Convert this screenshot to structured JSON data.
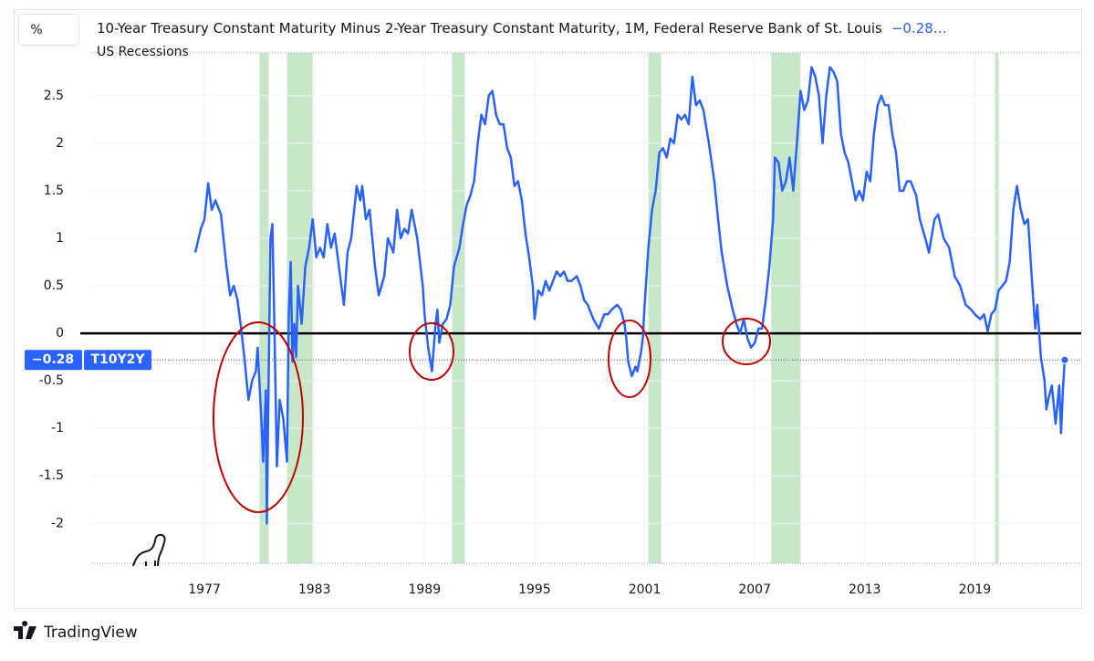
{
  "unit_button": "%",
  "footer": {
    "brand": "TradingView"
  },
  "chart_data": {
    "type": "line",
    "title": "10-Year Treasury Constant Maturity Minus 2-Year Treasury Constant Maturity, 1M, Federal Reserve Bank of St. Louis",
    "title_value": "−0.28…",
    "recessions": {
      "name": "US Recessions",
      "color": "#c8e6c9",
      "bands": [
        [
          1980.0,
          1980.5
        ],
        [
          1981.5,
          1982.9
        ],
        [
          1990.5,
          1991.2
        ],
        [
          2001.2,
          2001.9
        ],
        [
          2007.9,
          2009.5
        ],
        [
          2020.1,
          2020.3
        ]
      ]
    },
    "zero_line": true,
    "grid": true,
    "xlim": [
      1966.6,
      2024.8
    ],
    "xticks": [
      1977,
      1983,
      1989,
      1995,
      2001,
      2007,
      2013,
      2019
    ],
    "ylim": [
      -2.42,
      2.95
    ],
    "yticks": [
      -2,
      -1.5,
      -1,
      -0.5,
      0,
      0.5,
      1,
      1.5,
      2,
      2.5
    ],
    "last_value": {
      "value": -0.28,
      "label": "−0.28"
    },
    "series": [
      {
        "name": "T10Y2Y",
        "color": "#2962ff",
        "x": [
          1976.5,
          1976.8,
          1977.0,
          1977.2,
          1977.4,
          1977.6,
          1977.9,
          1978.2,
          1978.4,
          1978.6,
          1978.8,
          1979.0,
          1979.2,
          1979.4,
          1979.6,
          1979.8,
          1979.9,
          1980.1,
          1980.2,
          1980.35,
          1980.4,
          1980.5,
          1980.6,
          1980.7,
          1980.8,
          1980.95,
          1981.1,
          1981.3,
          1981.5,
          1981.6,
          1981.7,
          1981.8,
          1981.9,
          1982.0,
          1982.1,
          1982.3,
          1982.5,
          1982.7,
          1982.9,
          1983.1,
          1983.3,
          1983.5,
          1983.7,
          1983.9,
          1984.1,
          1984.4,
          1984.6,
          1984.8,
          1985.0,
          1985.3,
          1985.5,
          1985.6,
          1985.8,
          1986.0,
          1986.3,
          1986.5,
          1986.8,
          1987.0,
          1987.3,
          1987.5,
          1987.7,
          1987.9,
          1988.1,
          1988.3,
          1988.6,
          1988.9,
          1989.0,
          1989.2,
          1989.4,
          1989.6,
          1989.7,
          1989.8,
          1990.0,
          1990.2,
          1990.4,
          1990.6,
          1990.9,
          1991.1,
          1991.3,
          1991.5,
          1991.7,
          1991.9,
          1992.1,
          1992.3,
          1992.5,
          1992.7,
          1992.9,
          1993.1,
          1993.3,
          1993.5,
          1993.7,
          1993.9,
          1994.1,
          1994.3,
          1994.5,
          1994.7,
          1994.9,
          1995.0,
          1995.2,
          1995.4,
          1995.6,
          1995.8,
          1996.0,
          1996.2,
          1996.4,
          1996.6,
          1996.8,
          1997.0,
          1997.3,
          1997.5,
          1997.7,
          1997.9,
          1998.2,
          1998.5,
          1998.8,
          1999.0,
          1999.2,
          1999.5,
          1999.7,
          1999.9,
          2000.0,
          2000.1,
          2000.3,
          2000.5,
          2000.6,
          2000.8,
          2000.9,
          2001.0,
          2001.2,
          2001.4,
          2001.6,
          2001.8,
          2002.0,
          2002.2,
          2002.4,
          2002.6,
          2002.8,
          2003.0,
          2003.2,
          2003.4,
          2003.6,
          2003.8,
          2004.0,
          2004.2,
          2004.5,
          2004.8,
          2005.0,
          2005.2,
          2005.5,
          2005.8,
          2006.0,
          2006.2,
          2006.4,
          2006.6,
          2006.8,
          2007.0,
          2007.2,
          2007.4,
          2007.6,
          2007.8,
          2008.0,
          2008.1,
          2008.3,
          2008.5,
          2008.7,
          2008.9,
          2009.1,
          2009.3,
          2009.5,
          2009.7,
          2009.9,
          2010.1,
          2010.3,
          2010.5,
          2010.7,
          2010.9,
          2011.1,
          2011.3,
          2011.5,
          2011.7,
          2011.9,
          2012.1,
          2012.3,
          2012.5,
          2012.7,
          2012.9,
          2013.1,
          2013.3,
          2013.5,
          2013.7,
          2013.9,
          2014.1,
          2014.3,
          2014.5,
          2014.7,
          2014.9,
          2015.1,
          2015.3,
          2015.5,
          2015.8,
          2016.0,
          2016.3,
          2016.5,
          2016.8,
          2017.0,
          2017.3,
          2017.6,
          2017.9,
          2018.2,
          2018.5,
          2018.8,
          2019.0,
          2019.3,
          2019.5,
          2019.7,
          2019.9,
          2020.1,
          2020.3,
          2020.5,
          2020.7,
          2020.9,
          2021.1,
          2021.3,
          2021.5,
          2021.7,
          2021.9,
          2022.1,
          2022.3,
          2022.4,
          2022.6,
          2022.8,
          2022.9,
          2023.0,
          2023.2,
          2023.4,
          2023.6,
          2023.7,
          2023.8,
          2023.9
        ],
        "values": [
          0.85,
          1.1,
          1.2,
          1.58,
          1.3,
          1.4,
          1.25,
          0.7,
          0.4,
          0.5,
          0.35,
          0.05,
          -0.3,
          -0.7,
          -0.5,
          -0.4,
          -0.15,
          -0.9,
          -1.35,
          -0.6,
          -2.0,
          -0.5,
          1.0,
          1.15,
          0.2,
          -1.4,
          -0.7,
          -0.9,
          -1.35,
          0.2,
          0.75,
          -0.3,
          0.1,
          -0.25,
          0.5,
          0.1,
          0.7,
          0.9,
          1.2,
          0.8,
          0.9,
          0.8,
          1.15,
          0.9,
          1.05,
          0.6,
          0.3,
          0.85,
          1.0,
          1.55,
          1.4,
          1.55,
          1.2,
          1.3,
          0.7,
          0.4,
          0.6,
          1.0,
          0.85,
          1.3,
          1.0,
          1.1,
          1.05,
          1.3,
          1.0,
          0.5,
          0.2,
          -0.15,
          -0.4,
          0.1,
          0.25,
          -0.1,
          0.1,
          0.15,
          0.3,
          0.7,
          0.9,
          1.15,
          1.35,
          1.45,
          1.6,
          2.0,
          2.3,
          2.2,
          2.5,
          2.55,
          2.3,
          2.2,
          2.2,
          1.95,
          1.85,
          1.55,
          1.6,
          1.4,
          1.05,
          0.8,
          0.5,
          0.15,
          0.45,
          0.4,
          0.55,
          0.45,
          0.55,
          0.65,
          0.6,
          0.65,
          0.55,
          0.55,
          0.6,
          0.5,
          0.35,
          0.3,
          0.15,
          0.05,
          0.2,
          0.2,
          0.25,
          0.3,
          0.25,
          0.1,
          -0.05,
          -0.3,
          -0.45,
          -0.35,
          -0.4,
          -0.2,
          -0.05,
          0.3,
          0.9,
          1.3,
          1.5,
          1.9,
          1.95,
          1.85,
          2.05,
          2.0,
          2.3,
          2.25,
          2.3,
          2.2,
          2.7,
          2.4,
          2.45,
          2.35,
          2.0,
          1.6,
          1.2,
          0.85,
          0.5,
          0.25,
          0.1,
          0.0,
          0.15,
          -0.05,
          -0.15,
          -0.1,
          0.05,
          0.05,
          0.35,
          0.7,
          1.2,
          1.85,
          1.8,
          1.5,
          1.6,
          1.85,
          1.5,
          2.0,
          2.55,
          2.35,
          2.45,
          2.8,
          2.7,
          2.5,
          2.0,
          2.5,
          2.8,
          2.75,
          2.65,
          2.1,
          1.9,
          1.8,
          1.6,
          1.4,
          1.5,
          1.4,
          1.7,
          1.6,
          2.1,
          2.4,
          2.5,
          2.4,
          2.4,
          2.1,
          1.9,
          1.5,
          1.5,
          1.6,
          1.6,
          1.45,
          1.2,
          1.0,
          0.85,
          1.2,
          1.25,
          1.0,
          0.9,
          0.6,
          0.5,
          0.3,
          0.25,
          0.2,
          0.15,
          0.2,
          0.02,
          0.2,
          0.25,
          0.45,
          0.5,
          0.55,
          0.75,
          1.3,
          1.55,
          1.3,
          1.15,
          1.2,
          0.6,
          0.05,
          0.3,
          -0.25,
          -0.5,
          -0.8,
          -0.7,
          -0.55,
          -0.95,
          -0.55,
          -1.05,
          -0.6,
          -0.28
        ]
      }
    ]
  }
}
